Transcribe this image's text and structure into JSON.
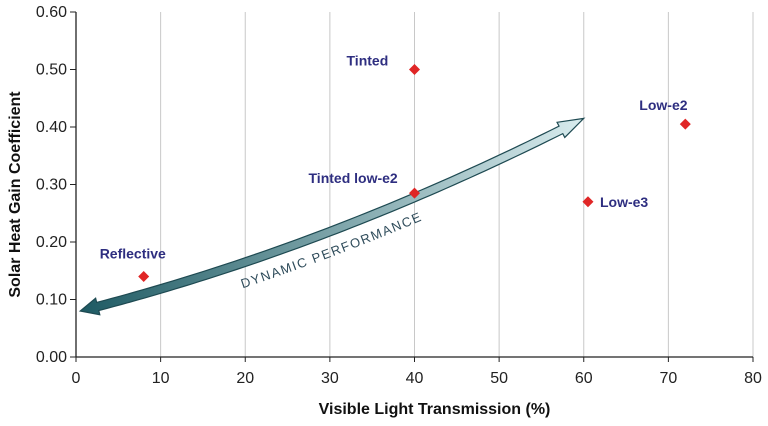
{
  "chart_data": {
    "type": "scatter",
    "title": "",
    "xlabel": "Visible Light Transmission (%)",
    "ylabel": "Solar Heat Gain Coefficient",
    "xlim": [
      0,
      80
    ],
    "ylim": [
      0.0,
      0.6
    ],
    "x_ticks": [
      "0",
      "10",
      "20",
      "30",
      "40",
      "50",
      "60",
      "70",
      "80"
    ],
    "y_ticks": [
      "0.00",
      "0.10",
      "0.20",
      "0.30",
      "0.40",
      "0.50",
      "0.60"
    ],
    "grid": "vertical",
    "points": [
      {
        "label": "Reflective",
        "x": 8,
        "y": 0.14
      },
      {
        "label": "Tinted",
        "x": 40,
        "y": 0.5
      },
      {
        "label": "Tinted low-e2",
        "x": 40,
        "y": 0.285
      },
      {
        "label": "Low-e3",
        "x": 60.5,
        "y": 0.27
      },
      {
        "label": "Low-e2",
        "x": 72,
        "y": 0.405
      }
    ],
    "arrow": {
      "label": "DYNAMIC PERFORMANCE",
      "start": {
        "x": 0.5,
        "y": 0.08
      },
      "control": {
        "x": 30,
        "y": 0.19
      },
      "end": {
        "x": 60,
        "y": 0.415
      }
    },
    "colors": {
      "marker": "#e02626",
      "label": "#2e2e80",
      "arrow_dark": "#1e5a63",
      "arrow_light": "#cfe3e6"
    }
  }
}
